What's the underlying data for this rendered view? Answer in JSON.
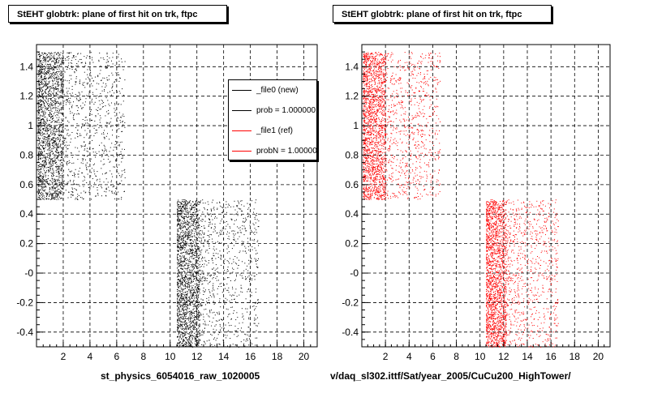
{
  "panels": [
    {
      "title": "StEHT globtrk: plane of first hit on trk, ftpc",
      "footer": "st_physics_6054016_raw_1020005"
    },
    {
      "title": "StEHT globtrk: plane of first hit on trk, ftpc",
      "footer": "v/daq_sl302.ittf/Sat/year_2005/CuCu200_HighTower/"
    }
  ],
  "legend": {
    "entries": [
      {
        "label": "_file0 (new)",
        "color": "#000000"
      },
      {
        "label": "prob = 1.000000",
        "color": "#000000"
      },
      {
        "label": "_file1 (ref)",
        "color": "#ff0000"
      },
      {
        "label": "probN = 1.000000",
        "color": "#ff0000"
      }
    ]
  },
  "chart_data": [
    {
      "type": "scatter",
      "title": "StEHT globtrk: plane of first hit on trk, ftpc",
      "xlabel": "st_physics_6054016_raw_1020005",
      "ylabel": "",
      "xlim": [
        0,
        21
      ],
      "ylim": [
        -0.5,
        1.55
      ],
      "xticks": [
        2,
        4,
        6,
        8,
        10,
        12,
        14,
        16,
        18,
        20
      ],
      "yticks": [
        -0.4,
        -0.2,
        0,
        0.2,
        0.4,
        0.6,
        0.8,
        1,
        1.2,
        1.4
      ],
      "ytick_labels": [
        "-0.4",
        "-0.2",
        "-0",
        "0.2",
        "0.4",
        "0.6",
        "0.8",
        "1",
        "1.2",
        "1.4"
      ],
      "grid": true,
      "legend_position": "top-right",
      "series": [
        {
          "color": "#000000",
          "clusters": [
            {
              "x_range": [
                0.1,
                6.6
              ],
              "y_range": [
                0.5,
                1.5
              ],
              "dense_x": [
                0.1,
                2.0
              ]
            },
            {
              "x_range": [
                10.5,
                16.6
              ],
              "y_range": [
                -0.5,
                0.5
              ],
              "dense_x": [
                10.5,
                12.2
              ]
            }
          ]
        }
      ]
    },
    {
      "type": "scatter",
      "title": "StEHT globtrk: plane of first hit on trk, ftpc",
      "xlabel": "v/daq_sl302.ittf/Sat/year_2005/CuCu200_HighTower/",
      "ylabel": "",
      "xlim": [
        0,
        21
      ],
      "ylim": [
        -0.5,
        1.55
      ],
      "xticks": [
        2,
        4,
        6,
        8,
        10,
        12,
        14,
        16,
        18,
        20
      ],
      "yticks": [
        -0.4,
        -0.2,
        0,
        0.2,
        0.4,
        0.6,
        0.8,
        1,
        1.2,
        1.4
      ],
      "ytick_labels": [
        "-0.4",
        "-0.2",
        "-0",
        "0.2",
        "0.4",
        "0.6",
        "0.8",
        "1",
        "1.2",
        "1.4"
      ],
      "grid": true,
      "series": [
        {
          "color": "#ff0000",
          "clusters": [
            {
              "x_range": [
                0.1,
                6.6
              ],
              "y_range": [
                0.5,
                1.5
              ],
              "dense_x": [
                0.1,
                2.0
              ]
            },
            {
              "x_range": [
                10.5,
                16.6
              ],
              "y_range": [
                -0.5,
                0.5
              ],
              "dense_x": [
                10.5,
                12.2
              ]
            }
          ]
        }
      ]
    }
  ]
}
